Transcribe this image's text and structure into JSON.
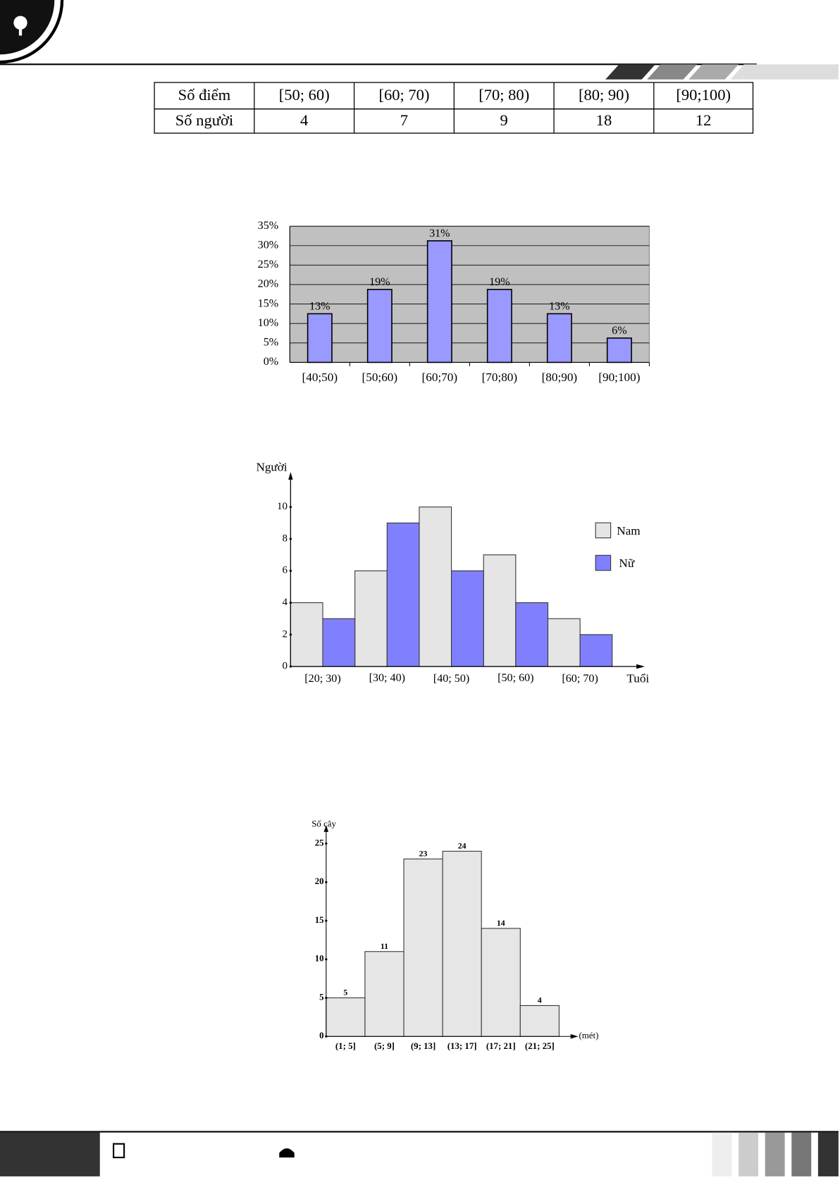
{
  "table": {
    "rows": [
      [
        "Số điểm",
        "[50; 60)",
        "[60; 70)",
        "[70; 80)",
        "[80; 90)",
        "[90;100)"
      ],
      [
        "Số người",
        4,
        7,
        9,
        18,
        12
      ]
    ]
  },
  "chart_data": [
    {
      "type": "bar",
      "categories": [
        "[40;50)",
        "[50;60)",
        "[60;70)",
        "[70;80)",
        "[80;90)",
        "[90;100)"
      ],
      "values": [
        12.5,
        18.75,
        31.25,
        18.75,
        12.5,
        6.25
      ],
      "value_labels": [
        "13%",
        "19%",
        "31%",
        "19%",
        "13%",
        "6%"
      ],
      "color": "#9999ff",
      "ylim": [
        0,
        35
      ],
      "yticks": [
        {
          "value": 0,
          "label": "0%"
        },
        {
          "value": 5,
          "label": "5%"
        },
        {
          "value": 10,
          "label": "10%"
        },
        {
          "value": 15,
          "label": "15%"
        },
        {
          "value": 20,
          "label": "20%"
        },
        {
          "value": 25,
          "label": "25%"
        },
        {
          "value": 30,
          "label": "30%"
        },
        {
          "value": 35,
          "label": "35%"
        }
      ],
      "grid": true
    },
    {
      "type": "grouped_bar",
      "y_label": "Người",
      "x_label": "Tuổi",
      "categories": [
        "[20; 30)",
        "[30; 40)",
        "[40; 50)",
        "[50; 60)",
        "[60; 70)"
      ],
      "series": [
        {
          "name": "Nam",
          "color": "#e5e5e5",
          "values": [
            4,
            6,
            10,
            7,
            3
          ]
        },
        {
          "name": "Nữ",
          "color": "#8080ff",
          "values": [
            3,
            9,
            6,
            4,
            2
          ]
        }
      ],
      "ylim": [
        0,
        12
      ],
      "yticks": [
        0,
        2,
        4,
        6,
        8,
        10
      ],
      "legend": "right"
    },
    {
      "type": "histogram",
      "y_label": "Số cây",
      "x_label": "(mét)",
      "categories": [
        "(1; 5]",
        "(5; 9]",
        "(9; 13]",
        "(13; 17]",
        "(17; 21]",
        "(21; 25]"
      ],
      "values": [
        5,
        11,
        23,
        24,
        14,
        4
      ],
      "color": "#e6e6e6",
      "ylim": [
        0,
        27
      ],
      "yticks": [
        0,
        5,
        10,
        15,
        20,
        25
      ]
    }
  ]
}
